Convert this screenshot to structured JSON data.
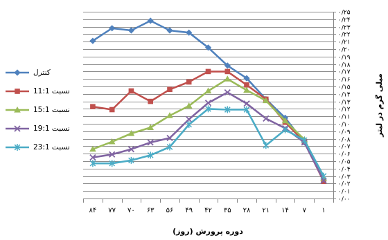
{
  "chart_data": {
    "type": "line",
    "xlabel": "دوره پرورش (روز)",
    "ylabel": "میلی گرم در لیتر",
    "categories": [
      "۸۴",
      "۷۷",
      "۷۰",
      "۶۳",
      "۵۶",
      "۴۹",
      "۴۲",
      "۳۵",
      "۲۸",
      "۲۱",
      "۱۴",
      "۷",
      "۱"
    ],
    "ylim": [
      0,
      0.25
    ],
    "ytick_step": 0.01,
    "yticks": [
      "۰/۰۰",
      "۰/۰۱",
      "۰/۰۲",
      "۰/۰۳",
      "۰/۰۴",
      "۰/۰۵",
      "۰/۰۶",
      "۰/۰۷",
      "۰/۰۸",
      "۰/۰۹",
      "۰/۱۰",
      "۰/۱۱",
      "۰/۱۲",
      "۰/۱۳",
      "۰/۱۴",
      "۰/۱۵",
      "۰/۱۶",
      "۰/۱۷",
      "۰/۱۸",
      "۰/۱۹",
      "۰/۲۰",
      "۰/۲۱",
      "۰/۲۲",
      "۰/۲۳",
      "۰/۲۴",
      "۰/۲۵"
    ],
    "y_axis_position": "right",
    "grid": true,
    "legend_position": "left",
    "series": [
      {
        "name": "کنترل",
        "color": "#4F81BD",
        "marker": "diamond",
        "values": [
          0.211,
          0.228,
          0.225,
          0.238,
          0.225,
          0.222,
          0.202,
          0.178,
          0.161,
          0.133,
          0.108,
          0.075,
          0.025
        ]
      },
      {
        "name": "نسبت 11:1",
        "color": "#C0504D",
        "marker": "square",
        "values": [
          0.123,
          0.119,
          0.144,
          0.13,
          0.146,
          0.156,
          0.17,
          0.17,
          0.152,
          0.133,
          0.102,
          0.076,
          0.023
        ]
      },
      {
        "name": "نسبت 15:1",
        "color": "#9BBB59",
        "marker": "triangle",
        "values": [
          0.066,
          0.076,
          0.087,
          0.095,
          0.111,
          0.124,
          0.144,
          0.16,
          0.145,
          0.131,
          0.104,
          0.079,
          0.027
        ]
      },
      {
        "name": "نسبت 19:1",
        "color": "#8064A2",
        "marker": "x",
        "values": [
          0.055,
          0.059,
          0.066,
          0.075,
          0.081,
          0.106,
          0.128,
          0.142,
          0.127,
          0.107,
          0.094,
          0.075,
          0.024
        ]
      },
      {
        "name": "نسبت 23:1",
        "color": "#4BACC6",
        "marker": "star",
        "values": [
          0.047,
          0.047,
          0.051,
          0.058,
          0.069,
          0.099,
          0.12,
          0.119,
          0.119,
          0.071,
          0.092,
          0.078,
          0.03
        ]
      }
    ]
  }
}
